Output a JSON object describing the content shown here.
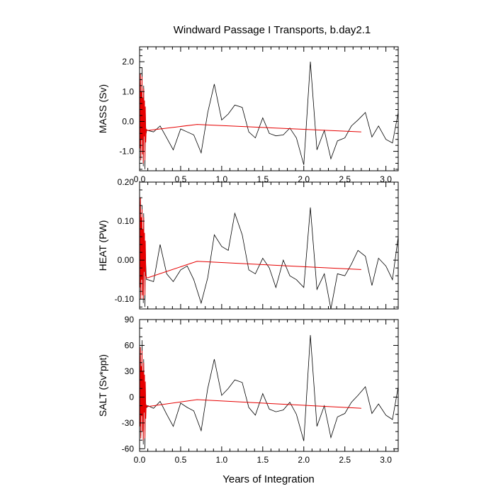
{
  "title": "Windward Passage I Transports, b.day2.1",
  "xlabel": "Years of Integration",
  "colors": {
    "raw": "#000000",
    "smooth": "#e60000"
  },
  "chart_data": [
    {
      "type": "line",
      "ylabel": "MASS (Sv)",
      "xlim": [
        0,
        3.15
      ],
      "ylim": [
        -1.65,
        2.5
      ],
      "xticks": [
        0,
        0.5,
        1,
        1.5,
        2,
        2.5,
        3
      ],
      "xtick_labels": [
        "0.0",
        "0.5",
        "1.0",
        "1.5",
        "2.0",
        "2.5",
        "3.0"
      ],
      "yticks": [
        -1,
        0,
        1,
        2
      ],
      "ytick_labels": [
        "-1.0",
        "0.0",
        "1.0",
        "2.0"
      ],
      "series": [
        {
          "style": "raw",
          "x": [
            0.0,
            0.005,
            0.01,
            0.015,
            0.02,
            0.025,
            0.03,
            0.035,
            0.04,
            0.045,
            0.05,
            0.055,
            0.06,
            0.065,
            0.07,
            0.075,
            0.08,
            0.085,
            0.09,
            0.1,
            0.17,
            0.25,
            0.33,
            0.41,
            0.5,
            0.58,
            0.66,
            0.75,
            0.83,
            0.91,
            1.0,
            1.08,
            1.16,
            1.25,
            1.33,
            1.41,
            1.5,
            1.58,
            1.66,
            1.75,
            1.83,
            1.91,
            2.0,
            2.08,
            2.16,
            2.25,
            2.33,
            2.41,
            2.5,
            2.58,
            2.66,
            2.75,
            2.83,
            2.91,
            3.0,
            3.08,
            3.15
          ],
          "y": [
            1.5,
            -0.8,
            1.3,
            -1.2,
            0.9,
            -0.5,
            1.8,
            -1.0,
            0.5,
            -1.5,
            1.2,
            -0.3,
            0.6,
            -1.6,
            0.3,
            -0.2,
            -0.4,
            -0.3,
            -0.3,
            -0.3,
            -0.35,
            -0.15,
            -0.55,
            -0.95,
            -0.25,
            -0.35,
            -0.45,
            -1.05,
            0.3,
            1.25,
            0.05,
            0.25,
            0.55,
            0.47,
            -0.35,
            -0.55,
            0.12,
            -0.4,
            -0.48,
            -0.45,
            -0.22,
            -0.55,
            -1.45,
            2.0,
            -0.95,
            -0.3,
            -1.25,
            -0.65,
            -0.55,
            -0.15,
            0.05,
            0.3,
            -0.52,
            -0.15,
            -0.6,
            -0.72,
            0.3
          ]
        },
        {
          "style": "smooth",
          "x": [
            0.0,
            0.005,
            0.01,
            0.015,
            0.02,
            0.025,
            0.03,
            0.035,
            0.04,
            0.045,
            0.05,
            0.055,
            0.06,
            0.065,
            0.07,
            0.075,
            0.08,
            0.085,
            0.09,
            0.1,
            0.7,
            2.7
          ],
          "y": [
            1.4,
            -0.9,
            1.6,
            -1.3,
            1.0,
            -0.6,
            1.5,
            -1.1,
            0.8,
            -1.4,
            1.1,
            -0.5,
            0.7,
            -1.3,
            0.5,
            -0.7,
            -0.25,
            -0.3,
            -0.28,
            -0.3,
            -0.1,
            -0.35
          ]
        }
      ]
    },
    {
      "type": "line",
      "ylabel": "HEAT (PW)",
      "xlim": [
        0,
        3.15
      ],
      "ylim": [
        -0.125,
        0.2
      ],
      "xticks": [
        0,
        0.5,
        1,
        1.5,
        2,
        2.5,
        3
      ],
      "xtick_labels": [
        "",
        "",
        "",
        "",
        "",
        "",
        ""
      ],
      "yticks": [
        -0.1,
        0,
        0.1,
        0.2
      ],
      "ytick_labels": [
        "-0.10",
        "0.00",
        "0.10",
        "0.20"
      ],
      "series": [
        {
          "style": "raw",
          "x": [
            0.0,
            0.005,
            0.01,
            0.015,
            0.02,
            0.025,
            0.03,
            0.035,
            0.04,
            0.045,
            0.05,
            0.055,
            0.06,
            0.065,
            0.07,
            0.075,
            0.08,
            0.085,
            0.09,
            0.1,
            0.17,
            0.25,
            0.33,
            0.41,
            0.5,
            0.58,
            0.66,
            0.75,
            0.83,
            0.91,
            1.0,
            1.08,
            1.16,
            1.25,
            1.33,
            1.41,
            1.5,
            1.58,
            1.66,
            1.75,
            1.83,
            1.91,
            2.0,
            2.08,
            2.16,
            2.25,
            2.33,
            2.41,
            2.5,
            2.58,
            2.66,
            2.75,
            2.83,
            2.91,
            3.0,
            3.08,
            3.15
          ],
          "y": [
            0.17,
            -0.06,
            0.15,
            -0.09,
            0.1,
            -0.04,
            0.14,
            -0.08,
            0.06,
            -0.11,
            0.12,
            -0.02,
            0.05,
            -0.12,
            0.03,
            -0.01,
            -0.04,
            -0.05,
            -0.05,
            -0.05,
            -0.055,
            0.04,
            -0.035,
            -0.055,
            -0.025,
            -0.015,
            -0.05,
            -0.11,
            -0.045,
            0.065,
            0.035,
            0.025,
            0.12,
            0.065,
            -0.025,
            -0.035,
            0.005,
            -0.02,
            -0.07,
            0.0,
            -0.04,
            -0.05,
            -0.07,
            0.135,
            -0.075,
            -0.035,
            -0.125,
            -0.035,
            -0.04,
            -0.01,
            0.025,
            0.01,
            -0.065,
            0.005,
            -0.015,
            -0.05,
            0.06
          ]
        },
        {
          "style": "smooth",
          "x": [
            0.0,
            0.005,
            0.01,
            0.015,
            0.02,
            0.025,
            0.03,
            0.035,
            0.04,
            0.045,
            0.05,
            0.055,
            0.06,
            0.065,
            0.07,
            0.075,
            0.08,
            0.085,
            0.09,
            0.1,
            0.7,
            2.7
          ],
          "y": [
            0.18,
            -0.07,
            0.16,
            -0.1,
            0.11,
            -0.05,
            0.13,
            -0.09,
            0.08,
            -0.1,
            0.11,
            -0.03,
            0.07,
            -0.09,
            0.05,
            -0.04,
            -0.04,
            -0.045,
            -0.045,
            -0.045,
            -0.003,
            -0.024
          ]
        }
      ]
    },
    {
      "type": "line",
      "ylabel": "SALT (Sv*ppt)",
      "xlim": [
        0,
        3.15
      ],
      "ylim": [
        -63,
        90
      ],
      "xticks": [
        0,
        0.5,
        1,
        1.5,
        2,
        2.5,
        3
      ],
      "xtick_labels": [
        "0.0",
        "0.5",
        "1.0",
        "1.5",
        "2.0",
        "2.5",
        "3.0"
      ],
      "yticks": [
        -60,
        -30,
        0,
        30,
        60,
        90
      ],
      "ytick_labels": [
        "-60",
        "-30",
        "0",
        "30",
        "60",
        "90"
      ],
      "series": [
        {
          "style": "raw",
          "x": [
            0.0,
            0.005,
            0.01,
            0.015,
            0.02,
            0.025,
            0.03,
            0.035,
            0.04,
            0.045,
            0.05,
            0.055,
            0.06,
            0.065,
            0.07,
            0.075,
            0.08,
            0.085,
            0.09,
            0.1,
            0.17,
            0.25,
            0.33,
            0.41,
            0.5,
            0.58,
            0.66,
            0.75,
            0.83,
            0.91,
            1.0,
            1.08,
            1.16,
            1.25,
            1.33,
            1.41,
            1.5,
            1.58,
            1.66,
            1.75,
            1.83,
            1.91,
            2.0,
            2.08,
            2.16,
            2.25,
            2.33,
            2.41,
            2.5,
            2.58,
            2.66,
            2.75,
            2.83,
            2.91,
            3.0,
            3.08,
            3.15
          ],
          "y": [
            55,
            -30,
            48,
            -45,
            33,
            -18,
            66,
            -38,
            20,
            -55,
            44,
            -12,
            24,
            -60,
            12,
            -8,
            -10,
            -12,
            -12,
            -10,
            -13,
            -5,
            -20,
            -34,
            -7,
            -12,
            -16,
            -39,
            10,
            44,
            2,
            10,
            20,
            17,
            -12,
            -21,
            4,
            -14,
            -17,
            -15,
            -6,
            -20,
            -51,
            72,
            -34,
            -10,
            -47,
            -23,
            -19,
            -6,
            2,
            12,
            -19,
            -8,
            -21,
            -26,
            12
          ]
        },
        {
          "style": "smooth",
          "x": [
            0.0,
            0.005,
            0.01,
            0.015,
            0.02,
            0.025,
            0.03,
            0.035,
            0.04,
            0.045,
            0.05,
            0.055,
            0.06,
            0.065,
            0.07,
            0.075,
            0.08,
            0.085,
            0.09,
            0.1,
            0.7,
            2.7
          ],
          "y": [
            52,
            -34,
            58,
            -48,
            36,
            -22,
            54,
            -40,
            30,
            -50,
            40,
            -18,
            26,
            -48,
            18,
            -25,
            -9,
            -11,
            -10,
            -11,
            -3,
            -13
          ]
        }
      ]
    }
  ]
}
